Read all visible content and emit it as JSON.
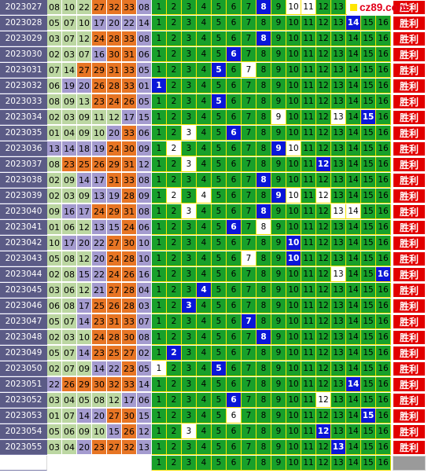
{
  "brand": {
    "text": "cz89.com"
  },
  "result_label": "胜利",
  "colors": {
    "period_bg": "#5b5b86",
    "ball_light_green": "#bcd7a2",
    "ball_lavender": "#a49bcf",
    "ball_orange": "#e77524",
    "grid_green": "#18a02a",
    "hit_blue": "#0a16d8",
    "result_red": "#e20000",
    "brand_red": "#e2001a"
  },
  "tracks": [
    "1",
    "2",
    "3",
    "4",
    "5",
    "6",
    "7",
    "8",
    "9",
    "10",
    "11",
    "12",
    "13",
    "14",
    "15",
    "16"
  ],
  "rows": [
    {
      "period": "2023027",
      "balls": [
        "08",
        "10",
        "22",
        "27",
        "32",
        "33"
      ],
      "kinds": [
        0,
        0,
        0,
        2,
        2,
        2
      ],
      "blue": "08",
      "whites": [
        10,
        11,
        14,
        15,
        16
      ]
    },
    {
      "period": "2023028",
      "balls": [
        "05",
        "07",
        "10",
        "17",
        "20",
        "22"
      ],
      "kinds": [
        0,
        0,
        0,
        1,
        1,
        1
      ],
      "blue": "14",
      "whites": []
    },
    {
      "period": "2023029",
      "balls": [
        "03",
        "07",
        "12",
        "24",
        "28",
        "33"
      ],
      "kinds": [
        0,
        0,
        0,
        2,
        2,
        2
      ],
      "blue": "08",
      "whites": []
    },
    {
      "period": "2023030",
      "balls": [
        "02",
        "03",
        "07",
        "16",
        "30",
        "31"
      ],
      "kinds": [
        0,
        0,
        0,
        1,
        2,
        2
      ],
      "blue": "06",
      "whites": []
    },
    {
      "period": "2023031",
      "balls": [
        "07",
        "14",
        "27",
        "29",
        "31",
        "33"
      ],
      "kinds": [
        0,
        0,
        2,
        2,
        2,
        2
      ],
      "blue": "05",
      "whites": [
        7
      ]
    },
    {
      "period": "2023032",
      "balls": [
        "06",
        "19",
        "20",
        "26",
        "28",
        "33"
      ],
      "kinds": [
        0,
        1,
        1,
        2,
        2,
        2
      ],
      "blue": "01",
      "whites": []
    },
    {
      "period": "2023033",
      "balls": [
        "08",
        "09",
        "13",
        "23",
        "24",
        "26"
      ],
      "kinds": [
        0,
        0,
        0,
        2,
        2,
        2
      ],
      "blue": "05",
      "whites": []
    },
    {
      "period": "2023034",
      "balls": [
        "02",
        "03",
        "09",
        "11",
        "12",
        "17"
      ],
      "kinds": [
        0,
        0,
        0,
        0,
        0,
        1
      ],
      "blue": "15",
      "whites": [
        9,
        13
      ]
    },
    {
      "period": "2023035",
      "balls": [
        "01",
        "04",
        "09",
        "10",
        "20",
        "33"
      ],
      "kinds": [
        0,
        0,
        0,
        0,
        1,
        2
      ],
      "blue": "06",
      "whites": [
        3
      ]
    },
    {
      "period": "2023036",
      "balls": [
        "13",
        "14",
        "18",
        "19",
        "24",
        "30"
      ],
      "kinds": [
        1,
        1,
        1,
        1,
        2,
        2
      ],
      "blue": "09",
      "whites": [
        2,
        10
      ]
    },
    {
      "period": "2023037",
      "balls": [
        "08",
        "23",
        "25",
        "26",
        "29",
        "31"
      ],
      "kinds": [
        0,
        2,
        2,
        2,
        2,
        2
      ],
      "blue": "12",
      "whites": [
        3
      ]
    },
    {
      "period": "2023038",
      "balls": [
        "02",
        "09",
        "14",
        "17",
        "31",
        "33"
      ],
      "kinds": [
        0,
        0,
        1,
        1,
        2,
        2
      ],
      "blue": "08",
      "whites": []
    },
    {
      "period": "2023039",
      "balls": [
        "02",
        "03",
        "09",
        "13",
        "19",
        "28"
      ],
      "kinds": [
        0,
        0,
        0,
        1,
        1,
        2
      ],
      "blue": "09",
      "whites": [
        2,
        4,
        10,
        12
      ]
    },
    {
      "period": "2023040",
      "balls": [
        "09",
        "16",
        "17",
        "24",
        "29",
        "31"
      ],
      "kinds": [
        0,
        1,
        1,
        2,
        2,
        2
      ],
      "blue": "08",
      "whites": [
        3,
        13,
        14
      ]
    },
    {
      "period": "2023041",
      "balls": [
        "01",
        "06",
        "12",
        "13",
        "15",
        "24"
      ],
      "kinds": [
        0,
        0,
        0,
        1,
        1,
        2
      ],
      "blue": "06",
      "whites": [
        8
      ]
    },
    {
      "period": "2023042",
      "balls": [
        "10",
        "17",
        "20",
        "22",
        "27",
        "30"
      ],
      "kinds": [
        0,
        1,
        1,
        1,
        2,
        2
      ],
      "blue": "10",
      "whites": []
    },
    {
      "period": "2023043",
      "balls": [
        "05",
        "08",
        "12",
        "20",
        "24",
        "28"
      ],
      "kinds": [
        0,
        0,
        0,
        1,
        2,
        2
      ],
      "blue": "10",
      "whites": [
        7
      ]
    },
    {
      "period": "2023044",
      "balls": [
        "02",
        "08",
        "15",
        "22",
        "24",
        "26"
      ],
      "kinds": [
        0,
        0,
        1,
        1,
        2,
        2
      ],
      "blue": "16",
      "whites": [
        13
      ]
    },
    {
      "period": "2023045",
      "balls": [
        "03",
        "06",
        "12",
        "21",
        "27",
        "28"
      ],
      "kinds": [
        0,
        0,
        0,
        1,
        2,
        2
      ],
      "blue": "04",
      "whites": []
    },
    {
      "period": "2023046",
      "balls": [
        "06",
        "08",
        "17",
        "25",
        "26",
        "28"
      ],
      "kinds": [
        0,
        0,
        1,
        2,
        2,
        2
      ],
      "blue": "03",
      "whites": []
    },
    {
      "period": "2023047",
      "balls": [
        "05",
        "07",
        "14",
        "23",
        "31",
        "33"
      ],
      "kinds": [
        0,
        0,
        1,
        2,
        2,
        2
      ],
      "blue": "07",
      "whites": []
    },
    {
      "period": "2023048",
      "balls": [
        "02",
        "03",
        "10",
        "24",
        "28",
        "30"
      ],
      "kinds": [
        0,
        0,
        0,
        2,
        2,
        2
      ],
      "blue": "08",
      "whites": []
    },
    {
      "period": "2023049",
      "balls": [
        "05",
        "07",
        "14",
        "23",
        "25",
        "27"
      ],
      "kinds": [
        0,
        0,
        1,
        2,
        2,
        2
      ],
      "blue": "02",
      "whites": []
    },
    {
      "period": "2023050",
      "balls": [
        "02",
        "07",
        "09",
        "14",
        "22",
        "23"
      ],
      "kinds": [
        0,
        0,
        0,
        1,
        1,
        2
      ],
      "blue": "05",
      "whites": [
        1
      ]
    },
    {
      "period": "2023051",
      "balls": [
        "22",
        "26",
        "29",
        "30",
        "32",
        "33"
      ],
      "kinds": [
        1,
        2,
        2,
        2,
        2,
        2
      ],
      "blue": "14",
      "whites": []
    },
    {
      "period": "2023052",
      "balls": [
        "03",
        "04",
        "05",
        "08",
        "12",
        "17"
      ],
      "kinds": [
        0,
        0,
        0,
        0,
        0,
        1
      ],
      "blue": "06",
      "whites": [
        12
      ]
    },
    {
      "period": "2023053",
      "balls": [
        "01",
        "07",
        "14",
        "20",
        "27",
        "30"
      ],
      "kinds": [
        0,
        0,
        1,
        1,
        2,
        2
      ],
      "blue": "15",
      "whites": [
        6
      ]
    },
    {
      "period": "2023054",
      "balls": [
        "05",
        "06",
        "09",
        "10",
        "15",
        "26"
      ],
      "kinds": [
        0,
        0,
        0,
        0,
        1,
        2
      ],
      "blue": "12",
      "whites": [
        3
      ]
    },
    {
      "period": "2023055",
      "balls": [
        "03",
        "04",
        "20",
        "23",
        "27",
        "32"
      ],
      "kinds": [
        0,
        0,
        1,
        2,
        2,
        2
      ],
      "blue": "13",
      "whites": []
    }
  ]
}
